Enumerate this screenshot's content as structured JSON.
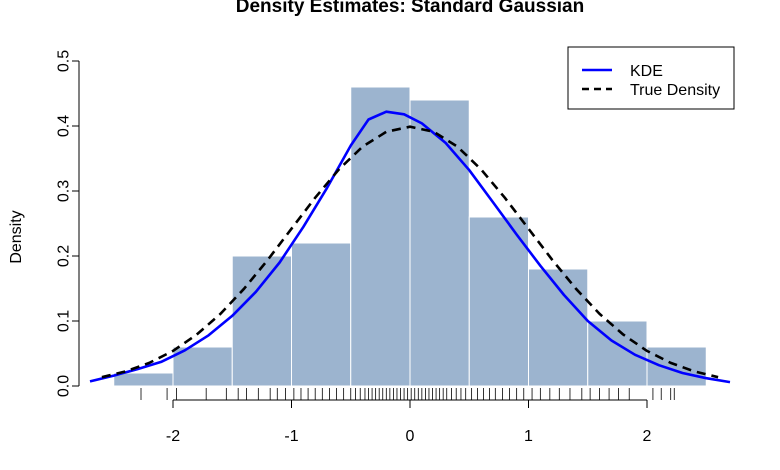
{
  "chart_data": {
    "type": "histogram",
    "title": "Density Estimates: Standard Gaussian",
    "xlabel": "",
    "ylabel": "Density",
    "xlim": [
      -2.7,
      2.7
    ],
    "ylim": [
      0,
      0.5
    ],
    "x_ticks": [
      -2,
      -1,
      0,
      1,
      2
    ],
    "y_ticks": [
      0.0,
      0.1,
      0.2,
      0.3,
      0.4,
      0.5
    ],
    "x_tick_labels": [
      "-2",
      "-1",
      "0",
      "1",
      "2"
    ],
    "y_tick_labels": [
      "0.0",
      "0.1",
      "0.2",
      "0.3",
      "0.4",
      "0.5"
    ],
    "grid": false,
    "legend_position": "top-right",
    "histogram": {
      "bins": [
        {
          "from": -2.5,
          "to": -2.0,
          "density": 0.02
        },
        {
          "from": -2.0,
          "to": -1.5,
          "density": 0.06
        },
        {
          "from": -1.5,
          "to": -1.0,
          "density": 0.2
        },
        {
          "from": -1.0,
          "to": -0.5,
          "density": 0.22
        },
        {
          "from": -0.5,
          "to": 0.0,
          "density": 0.46
        },
        {
          "from": 0.0,
          "to": 0.5,
          "density": 0.44
        },
        {
          "from": 0.5,
          "to": 1.0,
          "density": 0.26
        },
        {
          "from": 1.0,
          "to": 1.5,
          "density": 0.18
        },
        {
          "from": 1.5,
          "to": 2.0,
          "density": 0.1
        },
        {
          "from": 2.0,
          "to": 2.5,
          "density": 0.06
        }
      ],
      "fill_color": "#9cb4cf",
      "edge_color": "#ffffff"
    },
    "series": [
      {
        "name": "KDE",
        "color": "#0000ff",
        "style": "solid",
        "x": [
          -2.7,
          -2.5,
          -2.3,
          -2.1,
          -1.9,
          -1.7,
          -1.5,
          -1.3,
          -1.1,
          -0.9,
          -0.7,
          -0.5,
          -0.35,
          -0.2,
          -0.05,
          0.1,
          0.3,
          0.5,
          0.7,
          0.9,
          1.1,
          1.3,
          1.5,
          1.7,
          1.9,
          2.1,
          2.3,
          2.5,
          2.7
        ],
        "y": [
          0.007,
          0.016,
          0.026,
          0.037,
          0.055,
          0.078,
          0.108,
          0.145,
          0.19,
          0.245,
          0.305,
          0.37,
          0.41,
          0.422,
          0.418,
          0.404,
          0.374,
          0.332,
          0.283,
          0.233,
          0.185,
          0.14,
          0.1,
          0.07,
          0.048,
          0.032,
          0.02,
          0.012,
          0.006
        ]
      },
      {
        "name": "True Density",
        "color": "#000000",
        "style": "dashed",
        "x": [
          -2.6,
          -2.4,
          -2.2,
          -2.0,
          -1.8,
          -1.6,
          -1.4,
          -1.2,
          -1.0,
          -0.8,
          -0.6,
          -0.4,
          -0.2,
          0.0,
          0.2,
          0.4,
          0.6,
          0.8,
          1.0,
          1.2,
          1.4,
          1.6,
          1.8,
          2.0,
          2.2,
          2.4,
          2.6
        ],
        "y": [
          0.0136,
          0.0224,
          0.0355,
          0.054,
          0.079,
          0.1109,
          0.1497,
          0.1942,
          0.242,
          0.2897,
          0.3332,
          0.3683,
          0.391,
          0.3989,
          0.391,
          0.3683,
          0.3332,
          0.2897,
          0.242,
          0.1942,
          0.1497,
          0.1109,
          0.079,
          0.054,
          0.0355,
          0.0224,
          0.0136
        ]
      }
    ],
    "rug": [
      -2.27,
      -2.05,
      -1.97,
      -1.72,
      -1.55,
      -1.45,
      -1.38,
      -1.28,
      -1.18,
      -1.12,
      -1.05,
      -0.98,
      -0.92,
      -0.86,
      -0.8,
      -0.74,
      -0.68,
      -0.62,
      -0.56,
      -0.5,
      -0.46,
      -0.42,
      -0.38,
      -0.35,
      -0.32,
      -0.29,
      -0.26,
      -0.23,
      -0.2,
      -0.17,
      -0.14,
      -0.11,
      -0.08,
      -0.05,
      -0.02,
      0.01,
      0.04,
      0.07,
      0.1,
      0.13,
      0.16,
      0.19,
      0.22,
      0.25,
      0.28,
      0.31,
      0.35,
      0.39,
      0.43,
      0.47,
      0.52,
      0.57,
      0.62,
      0.67,
      0.72,
      0.78,
      0.84,
      0.9,
      0.96,
      1.03,
      1.1,
      1.18,
      1.26,
      1.35,
      1.45,
      1.52,
      1.6,
      1.68,
      1.76,
      1.85,
      2.05,
      2.12,
      2.2,
      2.23
    ]
  }
}
